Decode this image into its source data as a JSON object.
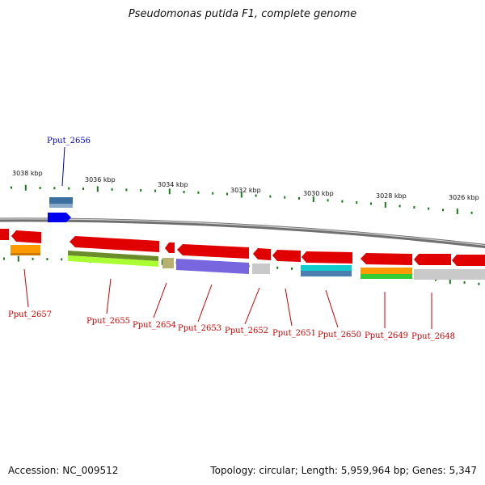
{
  "title": "Pseudomonas putida F1, complete genome",
  "footer": {
    "accession": "Accession: NC_009512",
    "summary": "Topology: circular; Length: 5,959,964 bp; Genes: 5,347"
  },
  "colors": {
    "label_red": "#cc0000",
    "label_blue": "#0000bb",
    "tick_green": "#1a7a1a",
    "backbone": "#888888"
  },
  "ticks": [
    {
      "label": "3038 kbp"
    },
    {
      "label": "3036 kbp"
    },
    {
      "label": "3034 kbp"
    },
    {
      "label": "3032 kbp"
    },
    {
      "label": "3030 kbp"
    },
    {
      "label": "3028 kbp"
    },
    {
      "label": "3026 kbp"
    }
  ],
  "genes": [
    {
      "label": "Pput_2656",
      "color": "#0000bb"
    },
    {
      "label": "Pput_2657",
      "color": "#cc0000"
    },
    {
      "label": "Pput_2655",
      "color": "#cc0000"
    },
    {
      "label": "Pput_2654",
      "color": "#cc0000"
    },
    {
      "label": "Pput_2653",
      "color": "#cc0000"
    },
    {
      "label": "Pput_2652",
      "color": "#cc0000"
    },
    {
      "label": "Pput_2651",
      "color": "#cc0000"
    },
    {
      "label": "Pput_2650",
      "color": "#cc0000"
    },
    {
      "label": "Pput_2649",
      "color": "#cc0000"
    },
    {
      "label": "Pput_2648",
      "color": "#cc0000"
    }
  ]
}
